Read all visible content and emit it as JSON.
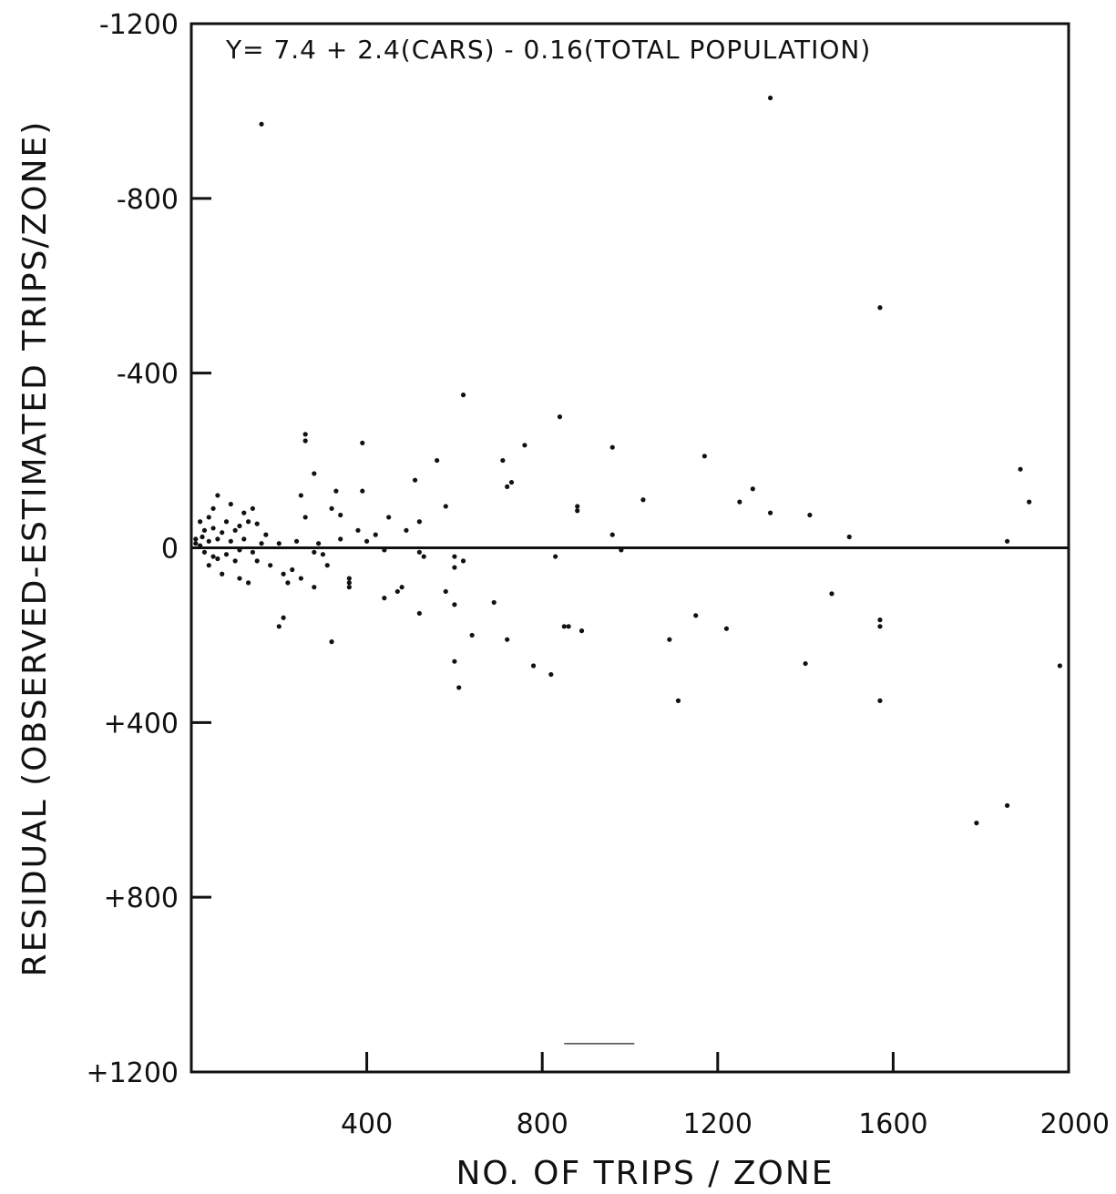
{
  "chart_data": {
    "type": "scatter",
    "title": "",
    "annotation": "Y= 7.4 + 2.4(CARS) - 0.16(TOTAL POPULATION)",
    "xlabel": "NO. OF TRIPS / ZONE",
    "ylabel": "RESIDUAL (OBSERVED-ESTIMATED TRIPS/ZONE)",
    "xlim": [
      0,
      2000
    ],
    "ylim": [
      -1200,
      1200
    ],
    "y_axis_inverted": true,
    "grid": false,
    "legend": "none",
    "x_ticks": [
      400,
      800,
      1200,
      1600,
      2000
    ],
    "x_tick_labels": [
      "400",
      "800",
      "1200",
      "1600",
      "2000"
    ],
    "y_ticks": [
      -1200,
      -800,
      -400,
      0,
      400,
      800,
      1200
    ],
    "y_tick_labels": [
      "-1200",
      "-800",
      "-400",
      "0",
      "+400",
      "+800",
      "+1200"
    ],
    "reference_line": 0,
    "points": [
      [
        160,
        -970
      ],
      [
        1320,
        -1030
      ],
      [
        1570,
        -550
      ],
      [
        620,
        -350
      ],
      [
        840,
        -300
      ],
      [
        260,
        -260
      ],
      [
        260,
        -245
      ],
      [
        390,
        -240
      ],
      [
        760,
        -235
      ],
      [
        960,
        -230
      ],
      [
        560,
        -200
      ],
      [
        710,
        -200
      ],
      [
        1170,
        -210
      ],
      [
        1890,
        -180
      ],
      [
        280,
        -170
      ],
      [
        510,
        -155
      ],
      [
        730,
        -150
      ],
      [
        720,
        -140
      ],
      [
        1280,
        -135
      ],
      [
        330,
        -130
      ],
      [
        390,
        -130
      ],
      [
        1030,
        -110
      ],
      [
        1910,
        -105
      ],
      [
        250,
        -120
      ],
      [
        1250,
        -105
      ],
      [
        880,
        -95
      ],
      [
        880,
        -85
      ],
      [
        580,
        -95
      ],
      [
        1320,
        -80
      ],
      [
        1410,
        -75
      ],
      [
        320,
        -90
      ],
      [
        340,
        -75
      ],
      [
        260,
        -70
      ],
      [
        450,
        -70
      ],
      [
        60,
        -120
      ],
      [
        50,
        -90
      ],
      [
        90,
        -100
      ],
      [
        120,
        -80
      ],
      [
        140,
        -90
      ],
      [
        20,
        -60
      ],
      [
        40,
        -70
      ],
      [
        80,
        -60
      ],
      [
        110,
        -50
      ],
      [
        130,
        -60
      ],
      [
        150,
        -55
      ],
      [
        30,
        -40
      ],
      [
        50,
        -45
      ],
      [
        70,
        -35
      ],
      [
        100,
        -40
      ],
      [
        170,
        -30
      ],
      [
        10,
        -20
      ],
      [
        25,
        -25
      ],
      [
        40,
        -15
      ],
      [
        60,
        -20
      ],
      [
        90,
        -15
      ],
      [
        120,
        -20
      ],
      [
        160,
        -10
      ],
      [
        380,
        -40
      ],
      [
        420,
        -30
      ],
      [
        490,
        -40
      ],
      [
        520,
        -60
      ],
      [
        960,
        -30
      ],
      [
        1500,
        -25
      ],
      [
        1860,
        -15
      ],
      [
        10,
        -10
      ],
      [
        20,
        -5
      ],
      [
        200,
        -10
      ],
      [
        240,
        -15
      ],
      [
        290,
        -10
      ],
      [
        340,
        -20
      ],
      [
        400,
        -15
      ],
      [
        30,
        10
      ],
      [
        50,
        20
      ],
      [
        80,
        15
      ],
      [
        110,
        5
      ],
      [
        140,
        10
      ],
      [
        280,
        10
      ],
      [
        300,
        15
      ],
      [
        440,
        5
      ],
      [
        520,
        10
      ],
      [
        530,
        20
      ],
      [
        980,
        5
      ],
      [
        60,
        25
      ],
      [
        100,
        30
      ],
      [
        40,
        40
      ],
      [
        150,
        30
      ],
      [
        180,
        40
      ],
      [
        230,
        50
      ],
      [
        310,
        40
      ],
      [
        600,
        20
      ],
      [
        600,
        45
      ],
      [
        620,
        30
      ],
      [
        70,
        60
      ],
      [
        110,
        70
      ],
      [
        130,
        80
      ],
      [
        210,
        60
      ],
      [
        220,
        80
      ],
      [
        250,
        70
      ],
      [
        280,
        90
      ],
      [
        360,
        70
      ],
      [
        360,
        80
      ],
      [
        360,
        90
      ],
      [
        830,
        20
      ],
      [
        850,
        180
      ],
      [
        860,
        180
      ],
      [
        470,
        100
      ],
      [
        480,
        90
      ],
      [
        440,
        115
      ],
      [
        690,
        125
      ],
      [
        580,
        100
      ],
      [
        210,
        160
      ],
      [
        320,
        215
      ],
      [
        520,
        150
      ],
      [
        600,
        130
      ],
      [
        1150,
        155
      ],
      [
        1460,
        105
      ],
      [
        1220,
        185
      ],
      [
        640,
        200
      ],
      [
        890,
        190
      ],
      [
        200,
        180
      ],
      [
        780,
        270
      ],
      [
        600,
        260
      ],
      [
        720,
        210
      ],
      [
        1090,
        210
      ],
      [
        820,
        290
      ],
      [
        1400,
        265
      ],
      [
        1570,
        165
      ],
      [
        1570,
        180
      ],
      [
        1980,
        270
      ],
      [
        610,
        320
      ],
      [
        1110,
        350
      ],
      [
        1570,
        350
      ],
      [
        1790,
        630
      ],
      [
        1860,
        590
      ]
    ],
    "stray_marks": [
      [
        850,
        1135
      ],
      [
        1010,
        1135
      ]
    ]
  }
}
